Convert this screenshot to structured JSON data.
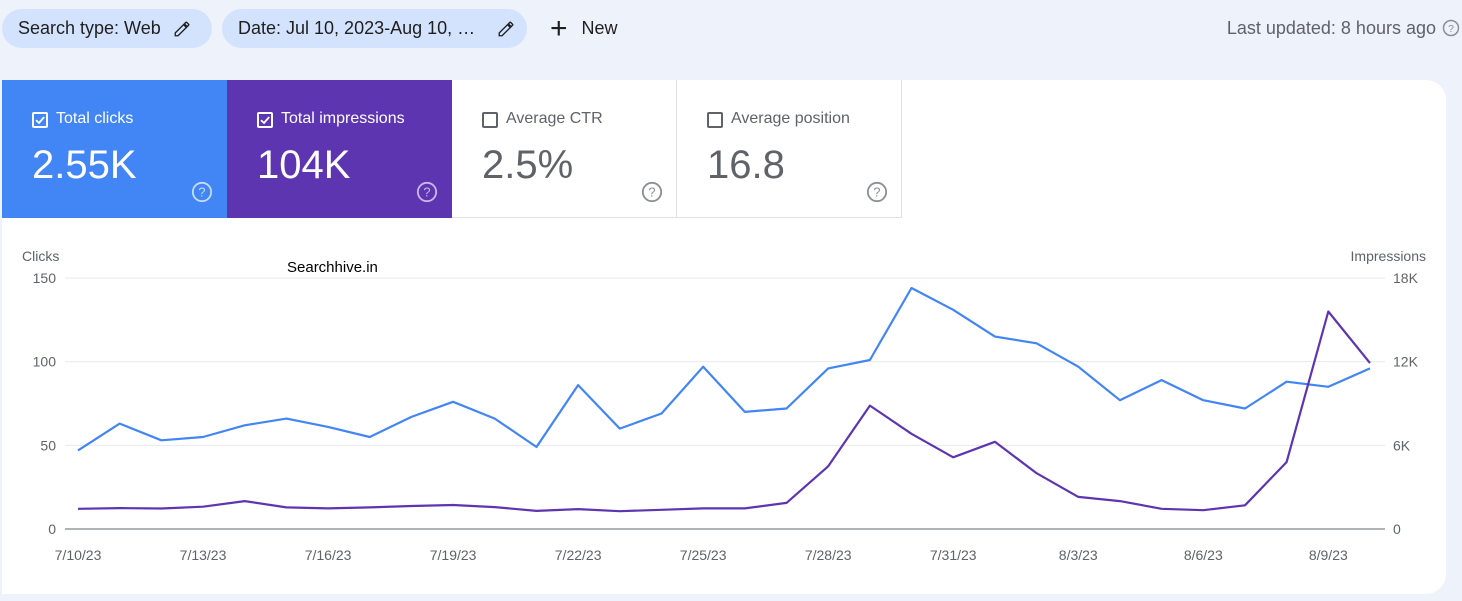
{
  "filters": {
    "search_type": "Search type: Web",
    "date": "Date: Jul 10, 2023-Aug 10, 2…",
    "new_label": "New"
  },
  "last_updated": "Last updated: 8 hours ago",
  "metrics": {
    "clicks": {
      "label": "Total clicks",
      "value": "2.55K",
      "checked": true,
      "color": "#4285f4"
    },
    "impressions": {
      "label": "Total impressions",
      "value": "104K",
      "checked": true,
      "color": "#5e35b1"
    },
    "ctr": {
      "label": "Average CTR",
      "value": "2.5%",
      "checked": false
    },
    "position": {
      "label": "Average position",
      "value": "16.8",
      "checked": false
    }
  },
  "watermark": "Searchhive.in",
  "chart_data": {
    "type": "line",
    "xlabel": "",
    "y_left_label": "Clicks",
    "y_right_label": "Impressions",
    "y_left_ticks": [
      "0",
      "50",
      "100",
      "150"
    ],
    "y_left_lim": [
      0,
      150
    ],
    "y_right_ticks": [
      "0",
      "6K",
      "12K",
      "18K"
    ],
    "y_right_lim": [
      0,
      18000
    ],
    "x_tick_labels": [
      "7/10/23",
      "7/13/23",
      "7/16/23",
      "7/19/23",
      "7/22/23",
      "7/25/23",
      "7/28/23",
      "7/31/23",
      "8/3/23",
      "8/6/23",
      "8/9/23"
    ],
    "x": [
      "7/10/23",
      "7/11/23",
      "7/12/23",
      "7/13/23",
      "7/14/23",
      "7/15/23",
      "7/16/23",
      "7/17/23",
      "7/18/23",
      "7/19/23",
      "7/20/23",
      "7/21/23",
      "7/22/23",
      "7/23/23",
      "7/24/23",
      "7/25/23",
      "7/26/23",
      "7/27/23",
      "7/28/23",
      "7/29/23",
      "7/30/23",
      "7/31/23",
      "8/1/23",
      "8/2/23",
      "8/3/23",
      "8/4/23",
      "8/5/23",
      "8/6/23",
      "8/7/23",
      "8/8/23",
      "8/9/23",
      "8/10/23"
    ],
    "grid": true,
    "series": [
      {
        "name": "Clicks",
        "axis": "left",
        "color": "#4285f4",
        "values": [
          47,
          63,
          53,
          55,
          62,
          66,
          61,
          55,
          67,
          76,
          66,
          49,
          86,
          60,
          69,
          97,
          70,
          72,
          96,
          101,
          144,
          131,
          115,
          111,
          97,
          77,
          89,
          77,
          72,
          88,
          85,
          96
        ]
      },
      {
        "name": "Impressions",
        "axis": "right",
        "color": "#5e35b1",
        "values": [
          1450,
          1500,
          1470,
          1600,
          2000,
          1550,
          1480,
          1550,
          1650,
          1720,
          1570,
          1300,
          1430,
          1280,
          1380,
          1480,
          1480,
          1870,
          4500,
          8850,
          6830,
          5140,
          6250,
          4000,
          2300,
          2000,
          1450,
          1350,
          1700,
          4800,
          15600,
          11900
        ]
      }
    ]
  }
}
